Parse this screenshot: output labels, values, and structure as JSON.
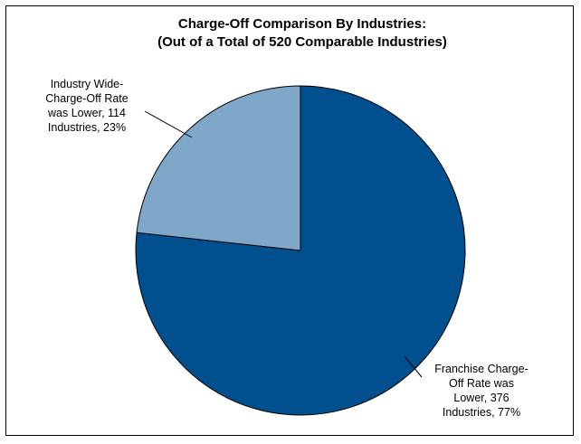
{
  "chart_data": {
    "type": "pie",
    "title": "Charge-Off Comparison By Industries:",
    "subtitle": "(Out of a Total of 520 Comparable Industries)",
    "slices": [
      {
        "name": "Franchise Charge-Off Rate was Lower",
        "value": 376,
        "percent": 77,
        "color": "#00508F",
        "label_lines": [
          "Franchise Charge-",
          "Off Rate was",
          "Lower, 376",
          "Industries, 77%"
        ]
      },
      {
        "name": "Industry Wide-Charge-Off Rate was Lower",
        "value": 114,
        "percent": 23,
        "color": "#7FA7CA",
        "label_lines": [
          "Industry Wide-",
          "Charge-Off Rate",
          "was Lower, 114",
          "Industries, 23%"
        ]
      }
    ],
    "legend": "none"
  }
}
